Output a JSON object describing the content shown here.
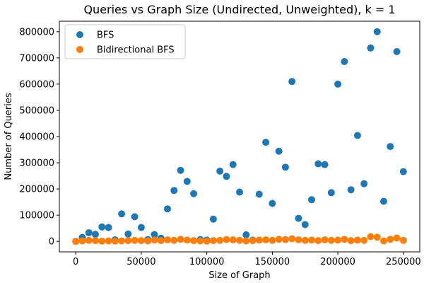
{
  "chart_data": {
    "type": "scatter",
    "title": "Queries vs Graph Size (Undirected, Unweighted), k = 1",
    "xlabel": "Size of Graph",
    "ylabel": "Number of Queries",
    "xlim": [
      -12500,
      262500
    ],
    "ylim": [
      -40000,
      840000
    ],
    "xticks": [
      0,
      50000,
      100000,
      150000,
      200000,
      250000
    ],
    "xtick_labels": [
      "0",
      "50000",
      "100000",
      "150000",
      "200000",
      "250000"
    ],
    "yticks": [
      0,
      100000,
      200000,
      300000,
      400000,
      500000,
      600000,
      700000,
      800000
    ],
    "ytick_labels": [
      "0",
      "100000",
      "200000",
      "300000",
      "400000",
      "500000",
      "600000",
      "700000",
      "800000"
    ],
    "grid": false,
    "legend_position": "top-left",
    "series": [
      {
        "name": "BFS",
        "color": "#1f77b4",
        "x": [
          0,
          5000,
          10000,
          15000,
          20000,
          25000,
          30000,
          35000,
          40000,
          45000,
          50000,
          55000,
          60000,
          65000,
          70000,
          75000,
          80000,
          85000,
          90000,
          95000,
          100000,
          105000,
          110000,
          115000,
          120000,
          125000,
          130000,
          135000,
          140000,
          145000,
          150000,
          155000,
          160000,
          165000,
          170000,
          175000,
          180000,
          185000,
          190000,
          195000,
          200000,
          205000,
          210000,
          215000,
          220000,
          225000,
          230000,
          235000,
          240000,
          245000,
          250000
        ],
        "y": [
          0,
          15000,
          33000,
          27000,
          55000,
          53000,
          6000,
          105000,
          28000,
          94000,
          53000,
          7000,
          26000,
          12000,
          124000,
          194000,
          271000,
          229000,
          182000,
          7000,
          5000,
          85000,
          268000,
          248000,
          293000,
          188000,
          25000,
          5000,
          180000,
          378000,
          145000,
          344000,
          283000,
          610000,
          88000,
          64000,
          159000,
          296000,
          293000,
          186000,
          600000,
          686000,
          197000,
          404000,
          220000,
          738000,
          800000,
          153000,
          362000,
          724000,
          266000
        ]
      },
      {
        "name": "Bidirectional BFS",
        "color": "#ff7f0e",
        "x": [
          0,
          5000,
          10000,
          15000,
          20000,
          25000,
          30000,
          35000,
          40000,
          45000,
          50000,
          55000,
          60000,
          65000,
          70000,
          75000,
          80000,
          85000,
          90000,
          95000,
          100000,
          105000,
          110000,
          115000,
          120000,
          125000,
          130000,
          135000,
          140000,
          145000,
          150000,
          155000,
          160000,
          165000,
          170000,
          175000,
          180000,
          185000,
          190000,
          195000,
          200000,
          205000,
          210000,
          215000,
          220000,
          225000,
          230000,
          235000,
          240000,
          245000,
          250000
        ],
        "y": [
          0,
          2000,
          4000,
          3000,
          1000,
          2000,
          1000,
          2000,
          3000,
          4000,
          3000,
          2000,
          5000,
          3000,
          6000,
          4000,
          8000,
          5000,
          3000,
          2000,
          1000,
          3000,
          4000,
          7000,
          6000,
          4000,
          2000,
          3000,
          5000,
          6000,
          4000,
          8000,
          7000,
          10000,
          6000,
          4000,
          5000,
          3000,
          6000,
          4000,
          5000,
          8000,
          3000,
          5000,
          4000,
          18000,
          16000,
          2000,
          8000,
          13000,
          4000
        ]
      }
    ]
  }
}
